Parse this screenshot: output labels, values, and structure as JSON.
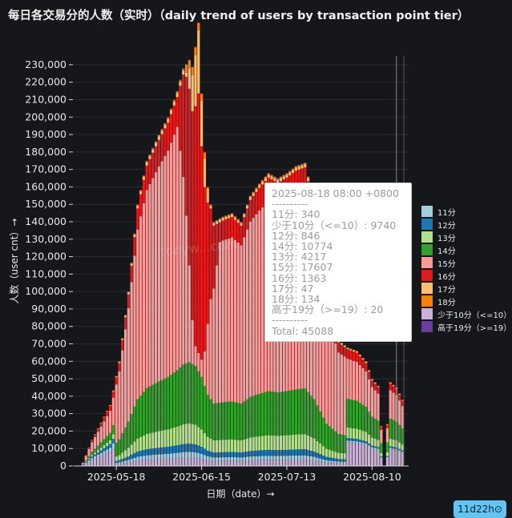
{
  "title": "每日各交易分的人数（实时）（daily trend of users by transaction point tier）",
  "watermark": "tonyw...com",
  "badge": "11d22h⊙",
  "colors": {
    "11分": "#a6cee3",
    "12分": "#1f78b4",
    "13分": "#b2df8a",
    "14分": "#33a02c",
    "15分": "#fb9a99",
    "16分": "#e31a1c",
    "17分": "#fdbf6f",
    "18分": "#ff7f00",
    "少于10分（<=10）": "#cab2d6",
    "高于19分（>=19）": "#6a3d9a"
  },
  "tooltip": {
    "lines": [
      "2025-08-18 08:00 +0800",
      "----------",
      "11分: 340",
      "少于10分（<=10）: 9740",
      "12分: 846",
      "14分: 10774",
      "13分: 4217",
      "15分: 17607",
      "16分: 1363",
      "17分: 47",
      "18分: 134",
      "高于19分（>=19）: 20",
      "----------",
      "Total: 45088"
    ]
  },
  "chart_data": {
    "type": "bar",
    "stacked": true,
    "xlabel": "日期（date）→",
    "ylabel": "人数（user cnt）→",
    "ylim": [
      0,
      235000
    ],
    "yticks": [
      0,
      10000,
      20000,
      30000,
      40000,
      50000,
      60000,
      70000,
      80000,
      90000,
      100000,
      110000,
      120000,
      130000,
      140000,
      150000,
      160000,
      170000,
      180000,
      190000,
      200000,
      210000,
      220000,
      230000
    ],
    "ytick_labels": [
      "0",
      "10,000",
      "20,000",
      "30,000",
      "40,000",
      "50,000",
      "60,000",
      "70,000",
      "80,000",
      "90,000",
      "100,000",
      "110,000",
      "120,000",
      "130,000",
      "140,000",
      "150,000",
      "160,000",
      "170,000",
      "180,000",
      "190,000",
      "200,000",
      "210,000",
      "220,000",
      "230,000"
    ],
    "x_start": "2025-05-04",
    "x_end": "2025-08-22",
    "xticks": [
      "2025-05-18",
      "2025-06-15",
      "2025-07-13",
      "2025-08-10"
    ],
    "legend_position": "right",
    "series_order": [
      "少于10分（<=10）",
      "11分",
      "12分",
      "13分",
      "14分",
      "15分",
      "16分",
      "17分",
      "18分",
      "高于19分（>=19）"
    ],
    "legend": [
      "11分",
      "12分",
      "13分",
      "14分",
      "15分",
      "16分",
      "17分",
      "18分",
      "少于10分（<=10）",
      "高于19分（>=19）"
    ],
    "totals_key_points": [
      [
        "2025-05-07",
        2000
      ],
      [
        "2025-05-10",
        15000
      ],
      [
        "2025-05-13",
        25000
      ],
      [
        "2025-05-16",
        35000
      ],
      [
        "2025-05-19",
        60000
      ],
      [
        "2025-05-22",
        100000
      ],
      [
        "2025-05-25",
        150000
      ],
      [
        "2025-05-28",
        175000
      ],
      [
        "2025-06-01",
        190000
      ],
      [
        "2025-06-04",
        200000
      ],
      [
        "2025-06-07",
        215000
      ],
      [
        "2025-06-09",
        228000
      ],
      [
        "2025-06-11",
        233000
      ],
      [
        "2025-06-13",
        225000
      ],
      [
        "2025-06-15",
        200000
      ],
      [
        "2025-06-17",
        160000
      ],
      [
        "2025-06-19",
        140000
      ],
      [
        "2025-06-22",
        143000
      ],
      [
        "2025-06-25",
        145000
      ],
      [
        "2025-06-28",
        140000
      ],
      [
        "2025-07-01",
        155000
      ],
      [
        "2025-07-04",
        162000
      ],
      [
        "2025-07-07",
        168000
      ],
      [
        "2025-07-10",
        165000
      ],
      [
        "2025-07-13",
        168000
      ],
      [
        "2025-07-16",
        172000
      ],
      [
        "2025-07-19",
        174000
      ],
      [
        "2025-07-22",
        150000
      ],
      [
        "2025-07-26",
        95000
      ],
      [
        "2025-07-30",
        72000
      ],
      [
        "2025-08-02",
        68000
      ],
      [
        "2025-08-05",
        66000
      ],
      [
        "2025-08-08",
        60000
      ],
      [
        "2025-08-10",
        50000
      ],
      [
        "2025-08-12",
        46000
      ],
      [
        "2025-08-14",
        0
      ],
      [
        "2025-08-16",
        48000
      ],
      [
        "2025-08-18",
        45088
      ],
      [
        "2025-08-20",
        38000
      ]
    ],
    "composition_note_series": [
      {
        "name": "16分",
        "peak_date": "2025-06-14",
        "peak_value": 155000
      },
      {
        "name": "17分",
        "peak_date": "2025-06-13",
        "peak_value": 35000
      }
    ]
  }
}
